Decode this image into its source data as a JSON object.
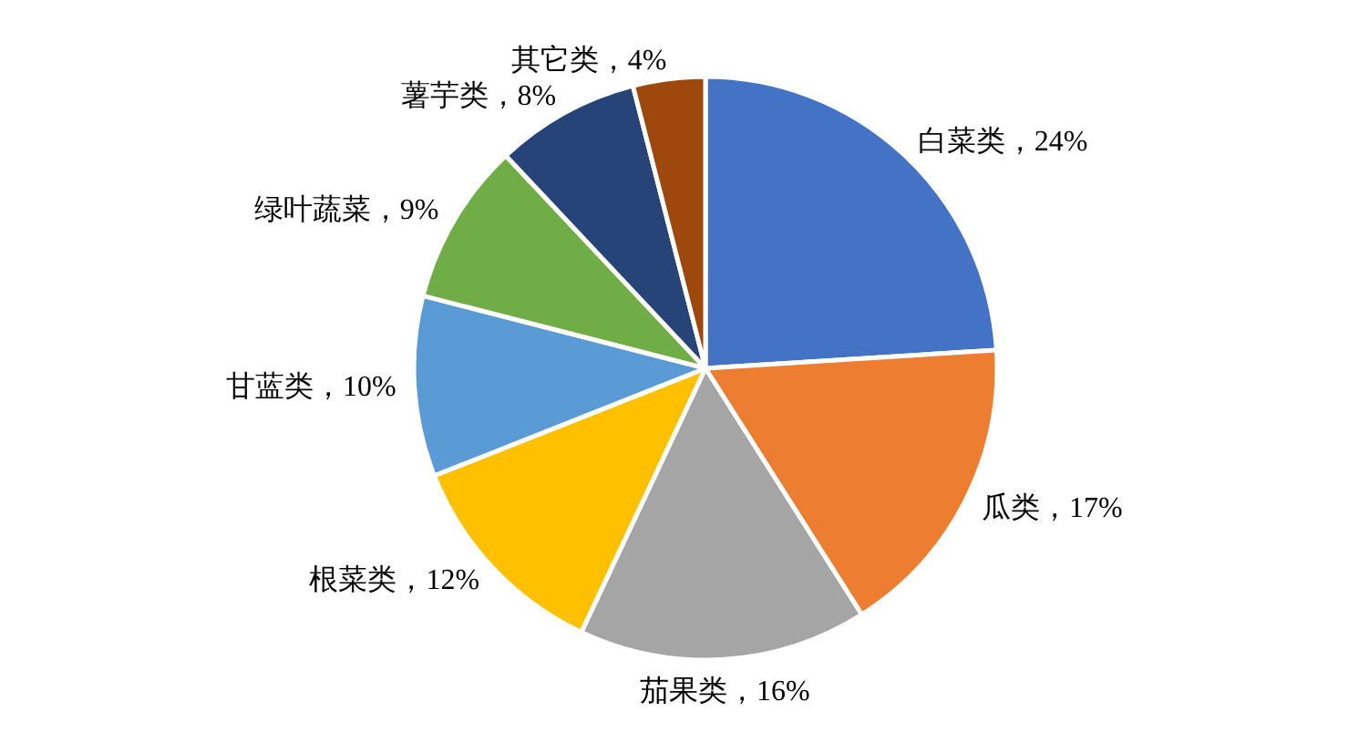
{
  "chart_data": {
    "type": "pie",
    "categories": [
      "白菜类",
      "瓜类",
      "茄果类",
      "根菜类",
      "甘蓝类",
      "绿叶蔬菜",
      "薯芋类",
      "其它类"
    ],
    "values": [
      24,
      17,
      16,
      12,
      10,
      9,
      8,
      4
    ],
    "colors": [
      "#4472c4",
      "#ed7d31",
      "#a5a5a5",
      "#ffc000",
      "#5b9bd5",
      "#70ad47",
      "#264478",
      "#9e480e"
    ],
    "value_labels": [
      "，24%",
      "，17%",
      "，16%",
      "，12%",
      "，10%",
      "，9%",
      "，8%",
      "，4%"
    ]
  }
}
